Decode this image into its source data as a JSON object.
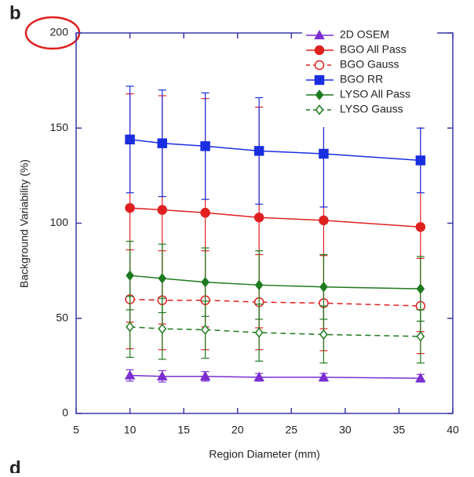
{
  "panel_labels": [
    "b",
    "d"
  ],
  "chart_data": {
    "type": "line",
    "x_label": "Region Diameter (mm)",
    "y_label": "Background Variability (%)",
    "x": [
      10,
      13,
      17,
      22,
      28,
      37
    ],
    "xlim": [
      5,
      40
    ],
    "xticks": [
      5,
      10,
      15,
      20,
      25,
      30,
      35,
      40
    ],
    "ylim": [
      0,
      200
    ],
    "yticks": [
      0,
      50,
      100,
      150,
      200
    ],
    "legend": "upper right",
    "series": [
      {
        "name": "2D OSEM",
        "color": "#7b2fd0",
        "marker": "triangle",
        "filled": true,
        "dashed": false,
        "values": [
          20,
          19.5,
          19.5,
          19,
          19,
          18.5
        ],
        "errors": [
          3,
          3,
          2.5,
          2,
          2,
          2
        ]
      },
      {
        "name": "BGO All Pass",
        "color": "#e02020",
        "marker": "circle",
        "filled": true,
        "dashed": false,
        "values": [
          108,
          107,
          105.5,
          103,
          101.5,
          98
        ],
        "errors": [
          60,
          60,
          60,
          58,
          57,
          55
        ]
      },
      {
        "name": "BGO Gauss",
        "color": "#e02020",
        "marker": "circle",
        "filled": false,
        "dashed": true,
        "values": [
          60,
          59.5,
          59.5,
          58.5,
          58,
          56.5
        ],
        "errors": [
          26,
          26,
          26,
          25,
          25,
          25
        ]
      },
      {
        "name": "BGO RR",
        "color": "#1a2ee0",
        "marker": "square",
        "filled": true,
        "dashed": false,
        "values": [
          144,
          142,
          140.5,
          138,
          136.5,
          133
        ],
        "errors": [
          28,
          28,
          28,
          28,
          28,
          17
        ]
      },
      {
        "name": "LYSO All Pass",
        "color": "#1e7a1e",
        "marker": "diamond",
        "filled": true,
        "dashed": false,
        "values": [
          72.5,
          71,
          69,
          67.5,
          66.5,
          65.5
        ],
        "errors": [
          18,
          18,
          18,
          18,
          17,
          17
        ]
      },
      {
        "name": "LYSO Gauss",
        "color": "#1e7a1e",
        "marker": "diamond",
        "filled": false,
        "dashed": true,
        "values": [
          45.5,
          44.5,
          44,
          42.5,
          41.5,
          40.5
        ],
        "errors": [
          16,
          16,
          15,
          15,
          15,
          14
        ]
      }
    ]
  }
}
